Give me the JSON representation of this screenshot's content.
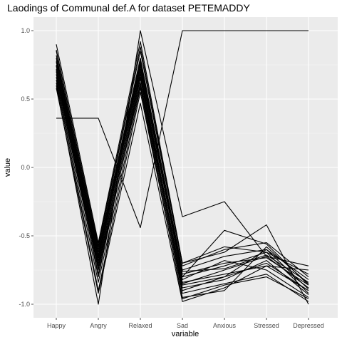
{
  "chart_data": {
    "type": "line",
    "title": "Laodings of Communal def.A for dataset PETEMADDY",
    "xlabel": "variable",
    "ylabel": "value",
    "categories": [
      "Happy",
      "Angry",
      "Relaxed",
      "Sad",
      "Anxious",
      "Stressed",
      "Depressed"
    ],
    "ylim": [
      -1.0,
      1.0
    ],
    "yticks": [
      -1.0,
      -0.5,
      0.0,
      0.5,
      1.0
    ],
    "ytick_labels": [
      "-1.0",
      "-0.5",
      "0.0",
      "0.5",
      "1.0"
    ],
    "grid": true,
    "legend": "none",
    "colors": {
      "panel": "#ebebeb",
      "grid_major": "#ffffff",
      "grid_minor": "#f5f5f5",
      "line": "#000000",
      "tick": "#4d4d4d"
    },
    "series": [
      {
        "values": [
          0.36,
          0.36,
          -0.44,
          1.0,
          1.0,
          1.0,
          1.0
        ]
      },
      {
        "values": [
          0.6,
          -1.0,
          1.0,
          -0.36,
          -0.25,
          -0.65,
          -0.72
        ]
      },
      {
        "values": [
          0.9,
          -0.55,
          0.92,
          -0.7,
          -0.62,
          -0.42,
          -1.0
        ]
      },
      {
        "values": [
          0.58,
          -0.92,
          0.47,
          -0.98,
          -0.88,
          -0.72,
          -0.75
        ]
      },
      {
        "values": [
          0.62,
          -0.9,
          0.55,
          -0.95,
          -0.9,
          -0.58,
          -0.85
        ]
      },
      {
        "values": [
          0.7,
          -0.8,
          0.65,
          -0.9,
          -0.8,
          -0.7,
          -0.9
        ]
      },
      {
        "values": [
          0.72,
          -0.72,
          0.7,
          -0.85,
          -0.75,
          -0.65,
          -0.88
        ]
      },
      {
        "values": [
          0.75,
          -0.68,
          0.72,
          -0.8,
          -0.72,
          -0.62,
          -0.92
        ]
      },
      {
        "values": [
          0.78,
          -0.65,
          0.75,
          -0.82,
          -0.68,
          -0.75,
          -0.95
        ]
      },
      {
        "values": [
          0.8,
          -0.62,
          0.78,
          -0.78,
          -0.7,
          -0.66,
          -0.86
        ]
      },
      {
        "values": [
          0.82,
          -0.6,
          0.8,
          -0.75,
          -0.65,
          -0.6,
          -0.82
        ]
      },
      {
        "values": [
          0.85,
          -0.58,
          0.85,
          -0.72,
          -0.6,
          -0.55,
          -0.8
        ]
      },
      {
        "values": [
          0.68,
          -0.75,
          0.6,
          -0.92,
          -0.85,
          -0.78,
          -0.98
        ]
      },
      {
        "values": [
          0.66,
          -0.78,
          0.62,
          -0.88,
          -0.82,
          -0.68,
          -0.93
        ]
      },
      {
        "values": [
          0.74,
          -0.7,
          0.68,
          -0.84,
          -0.78,
          -0.72,
          -0.9
        ]
      },
      {
        "values": [
          0.77,
          -0.66,
          0.74,
          -0.76,
          -0.74,
          -0.64,
          -0.84
        ]
      },
      {
        "values": [
          0.64,
          -0.84,
          0.58,
          -0.96,
          -0.86,
          -0.8,
          -0.96
        ]
      },
      {
        "values": [
          0.86,
          -0.57,
          0.88,
          -0.7,
          -0.58,
          -0.62,
          -0.78
        ]
      },
      {
        "values": [
          0.71,
          -0.74,
          0.66,
          -0.86,
          -0.8,
          -0.6,
          -0.89
        ]
      },
      {
        "values": [
          0.8,
          -0.64,
          0.76,
          -0.8,
          -0.46,
          -0.56,
          -0.86
        ]
      }
    ]
  }
}
